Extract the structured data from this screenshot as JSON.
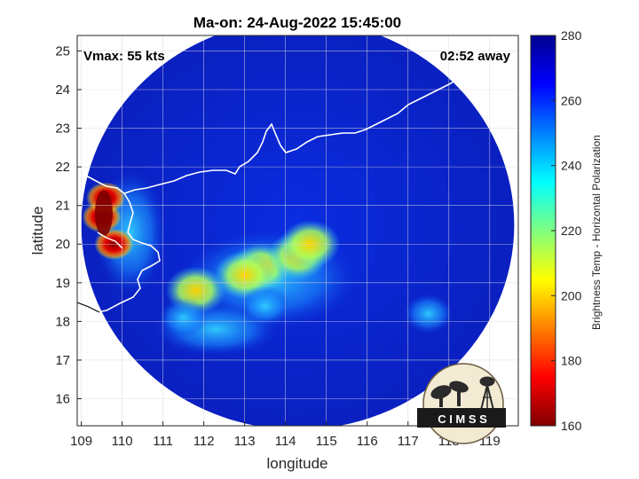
{
  "chart_data": {
    "type": "heatmap",
    "title": "Ma-on: 24-Aug-2022 15:45:00",
    "xlabel": "longitude",
    "ylabel": "latitude",
    "xlim": [
      108.9,
      119.7
    ],
    "ylim": [
      15.3,
      25.4
    ],
    "x_ticks": [
      109,
      110,
      111,
      112,
      113,
      114,
      115,
      116,
      117,
      118,
      119
    ],
    "y_ticks": [
      16,
      17,
      18,
      19,
      20,
      21,
      22,
      23,
      24,
      25
    ],
    "grid": true,
    "annotations": {
      "vmax": "Vmax: 55 kts",
      "time_away": "02:52 away"
    },
    "colorbar": {
      "label": "Brightness Temp - Horizontal Polarization",
      "min": 160,
      "max": 280,
      "ticks": [
        160,
        180,
        200,
        220,
        240,
        260,
        280
      ],
      "colormap": [
        "#7f0000",
        "#ff0000",
        "#ff8000",
        "#ffff00",
        "#80ff80",
        "#00ffff",
        "#0080ff",
        "#0000ff",
        "#00008f"
      ]
    },
    "swath": {
      "center_lon": 114.3,
      "center_lat": 20.5,
      "radius_deg": 5.3
    },
    "cold_features": [
      {
        "lon": 109.5,
        "lat": 20.7,
        "value": 170
      },
      {
        "lon": 109.6,
        "lat": 21.2,
        "value": 178
      },
      {
        "lon": 109.8,
        "lat": 20.0,
        "value": 188
      },
      {
        "lon": 113.4,
        "lat": 19.4,
        "value": 200
      },
      {
        "lon": 114.3,
        "lat": 19.7,
        "value": 196
      },
      {
        "lon": 114.6,
        "lat": 20.0,
        "value": 194
      },
      {
        "lon": 113.0,
        "lat": 19.2,
        "value": 214
      },
      {
        "lon": 111.8,
        "lat": 18.8,
        "value": 196
      },
      {
        "lon": 113.5,
        "lat": 18.4,
        "value": 236
      },
      {
        "lon": 111.5,
        "lat": 18.1,
        "value": 236
      },
      {
        "lon": 117.5,
        "lat": 18.2,
        "value": 240
      }
    ],
    "logo_text": "C I M S S"
  }
}
